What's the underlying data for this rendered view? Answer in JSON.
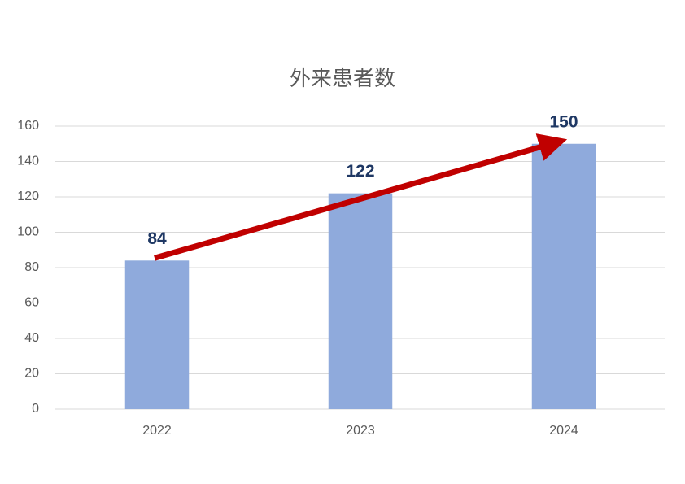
{
  "chart_data": {
    "type": "bar",
    "title": "外来患者数",
    "categories": [
      "2022",
      "2023",
      "2024"
    ],
    "values": [
      84,
      122,
      150
    ],
    "color": "#8faadc",
    "ylim": [
      0,
      160
    ],
    "yticks": [
      0,
      20,
      40,
      60,
      80,
      100,
      120,
      140,
      160
    ],
    "grid": true
  }
}
